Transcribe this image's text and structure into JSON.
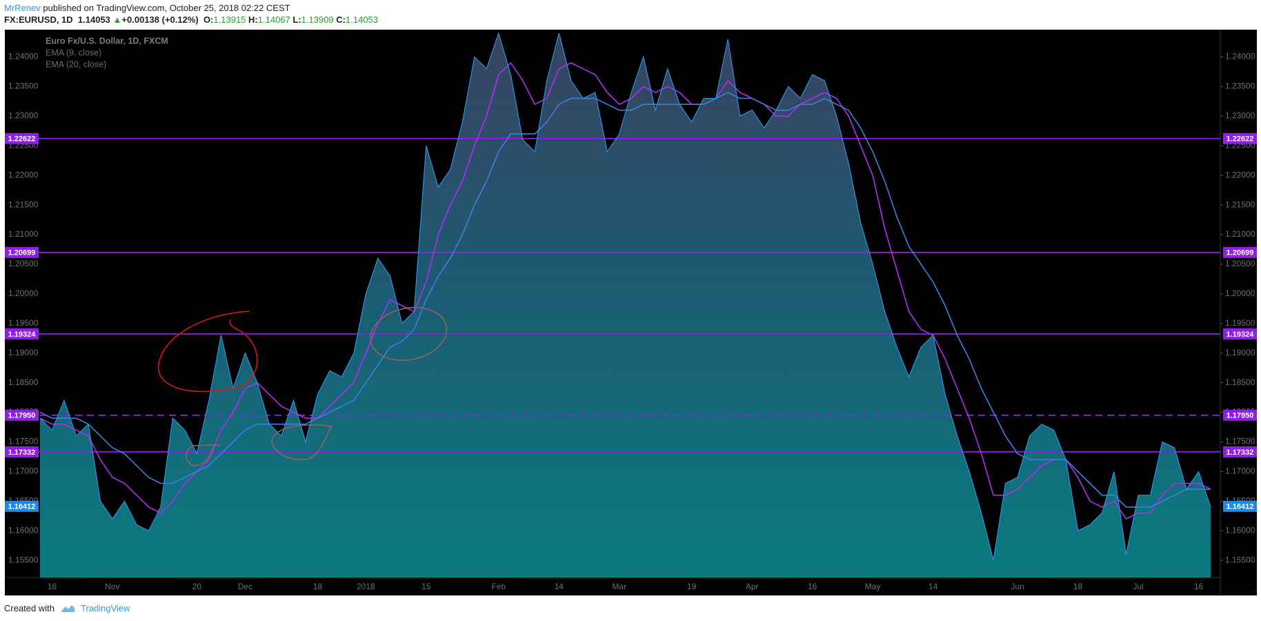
{
  "header": {
    "author": "MrRenev",
    "published": "published on TradingView.com, October 25, 2018 02:22 CEST",
    "symbol": "FX:EURUSD, 1D",
    "price": "1.14053",
    "arrow": "▲",
    "change": "+0.00138 (+0.12%)",
    "o_label": "O:",
    "o": "1.13915",
    "h_label": "H:",
    "h": "1.14067",
    "l_label": "L:",
    "l": "1.13909",
    "c_label": "C:",
    "c": "1.14053"
  },
  "footer": {
    "created": "Created with",
    "brand": "TradingView"
  },
  "chart_data": {
    "type": "area",
    "categories": [
      null,
      "16",
      null,
      null,
      null,
      null,
      "Nov",
      null,
      null,
      null,
      null,
      null,
      null,
      "20",
      null,
      null,
      null,
      "Dec",
      null,
      null,
      null,
      null,
      null,
      "18",
      null,
      null,
      null,
      "2018",
      null,
      null,
      null,
      null,
      "15",
      null,
      null,
      null,
      null,
      null,
      "Feb",
      null,
      null,
      null,
      null,
      "14",
      null,
      null,
      null,
      null,
      "Mar",
      null,
      null,
      null,
      null,
      null,
      "19",
      null,
      null,
      null,
      null,
      "Apr",
      null,
      null,
      null,
      null,
      "16",
      null,
      null,
      null,
      null,
      "May",
      null,
      null,
      null,
      null,
      "14",
      null,
      null,
      null,
      null,
      null,
      null,
      "Jun",
      null,
      null,
      null,
      null,
      "18",
      null,
      null,
      null,
      null,
      "Jul",
      null,
      null,
      null,
      null,
      "16",
      null
    ],
    "series": [
      {
        "name": "Euro Fx/U.S. Dollar, 1D, FXCM",
        "style": "area",
        "color": "#2a93e0",
        "values": [
          1.179,
          1.177,
          1.182,
          1.176,
          1.178,
          1.165,
          1.162,
          1.165,
          1.161,
          1.16,
          1.164,
          1.179,
          1.177,
          1.173,
          1.182,
          1.193,
          1.184,
          1.19,
          1.185,
          1.178,
          1.176,
          1.182,
          1.175,
          1.183,
          1.187,
          1.186,
          1.19,
          1.2,
          1.206,
          1.203,
          1.195,
          1.197,
          1.225,
          1.218,
          1.221,
          1.229,
          1.24,
          1.238,
          1.244,
          1.237,
          1.226,
          1.224,
          1.236,
          1.244,
          1.236,
          1.233,
          1.234,
          1.224,
          1.227,
          1.234,
          1.24,
          1.231,
          1.238,
          1.232,
          1.229,
          1.233,
          1.233,
          1.243,
          1.23,
          1.231,
          1.228,
          1.231,
          1.235,
          1.233,
          1.237,
          1.236,
          1.23,
          1.222,
          1.212,
          1.205,
          1.197,
          1.191,
          1.186,
          1.191,
          1.193,
          1.183,
          1.176,
          1.17,
          1.163,
          1.155,
          1.168,
          1.169,
          1.176,
          1.178,
          1.177,
          1.172,
          1.16,
          1.161,
          1.163,
          1.17,
          1.156,
          1.166,
          1.166,
          1.175,
          1.174,
          1.167,
          1.17,
          1.164
        ]
      },
      {
        "name": "EMA (9, close)",
        "style": "line",
        "color": "#b02ef0",
        "values": [
          1.179,
          1.178,
          1.178,
          1.177,
          1.176,
          1.172,
          1.169,
          1.168,
          1.166,
          1.164,
          1.163,
          1.165,
          1.168,
          1.17,
          1.172,
          1.177,
          1.18,
          1.184,
          1.185,
          1.183,
          1.181,
          1.18,
          1.179,
          1.179,
          1.181,
          1.183,
          1.185,
          1.19,
          1.195,
          1.199,
          1.198,
          1.197,
          1.202,
          1.21,
          1.215,
          1.219,
          1.225,
          1.23,
          1.237,
          1.239,
          1.236,
          1.232,
          1.233,
          1.238,
          1.239,
          1.238,
          1.237,
          1.234,
          1.232,
          1.233,
          1.235,
          1.234,
          1.235,
          1.234,
          1.232,
          1.232,
          1.233,
          1.236,
          1.234,
          1.233,
          1.232,
          1.23,
          1.23,
          1.232,
          1.233,
          1.234,
          1.233,
          1.23,
          1.225,
          1.22,
          1.211,
          1.204,
          1.197,
          1.194,
          1.193,
          1.189,
          1.184,
          1.179,
          1.173,
          1.166,
          1.166,
          1.167,
          1.169,
          1.171,
          1.172,
          1.172,
          1.169,
          1.165,
          1.164,
          1.165,
          1.162,
          1.163,
          1.163,
          1.166,
          1.168,
          1.168,
          1.168,
          1.167
        ]
      },
      {
        "name": "EMA (20, close)",
        "style": "line",
        "color": "#3f7fdc",
        "values": [
          1.18,
          1.179,
          1.179,
          1.179,
          1.178,
          1.176,
          1.174,
          1.173,
          1.171,
          1.169,
          1.168,
          1.168,
          1.169,
          1.17,
          1.171,
          1.173,
          1.175,
          1.177,
          1.178,
          1.178,
          1.178,
          1.178,
          1.178,
          1.179,
          1.18,
          1.181,
          1.182,
          1.185,
          1.188,
          1.191,
          1.192,
          1.194,
          1.199,
          1.203,
          1.206,
          1.21,
          1.215,
          1.219,
          1.224,
          1.227,
          1.227,
          1.227,
          1.229,
          1.232,
          1.233,
          1.233,
          1.233,
          1.232,
          1.231,
          1.231,
          1.232,
          1.232,
          1.232,
          1.232,
          1.232,
          1.232,
          1.233,
          1.234,
          1.233,
          1.233,
          1.232,
          1.231,
          1.231,
          1.232,
          1.232,
          1.233,
          1.232,
          1.231,
          1.228,
          1.224,
          1.219,
          1.213,
          1.208,
          1.205,
          1.202,
          1.198,
          1.193,
          1.189,
          1.184,
          1.18,
          1.176,
          1.173,
          1.172,
          1.172,
          1.172,
          1.172,
          1.17,
          1.168,
          1.166,
          1.166,
          1.164,
          1.164,
          1.164,
          1.165,
          1.166,
          1.167,
          1.167,
          1.167
        ]
      }
    ],
    "ylim": [
      1.1521,
      1.2446
    ],
    "yticks": [
      {
        "value": 1.155,
        "label": "1.15500"
      },
      {
        "value": 1.16,
        "label": "1.16000"
      },
      {
        "value": 1.165,
        "label": "1.16500"
      },
      {
        "value": 1.17,
        "label": "1.17000"
      },
      {
        "value": 1.175,
        "label": "1.17500"
      },
      {
        "value": 1.18,
        "label": "1.18000"
      },
      {
        "value": 1.185,
        "label": "1.18500"
      },
      {
        "value": 1.19,
        "label": "1.19000"
      },
      {
        "value": 1.195,
        "label": "1.19500"
      },
      {
        "value": 1.2,
        "label": "1.20000"
      },
      {
        "value": 1.205,
        "label": "1.20500"
      },
      {
        "value": 1.21,
        "label": "1.21000"
      },
      {
        "value": 1.215,
        "label": "1.21500"
      },
      {
        "value": 1.22,
        "label": "1.22000"
      },
      {
        "value": 1.225,
        "label": "1.22500"
      },
      {
        "value": 1.23,
        "label": "1.23000"
      },
      {
        "value": 1.235,
        "label": "1.23500"
      },
      {
        "value": 1.24,
        "label": "1.24000"
      }
    ],
    "levels": [
      {
        "value": 1.22622,
        "color": "#8f1fe6"
      },
      {
        "value": 1.20699,
        "color": "#8f1fe6"
      },
      {
        "value": 1.19324,
        "color": "#8f1fe6"
      },
      {
        "value": 1.1795,
        "label": "1.17950",
        "color": "#8f1fe6",
        "dashed": true
      },
      {
        "value": 1.17332,
        "color": "#8f1fe6"
      }
    ],
    "last_price": 1.16412,
    "last_price_color": "#1e88e5",
    "grid": false
  }
}
